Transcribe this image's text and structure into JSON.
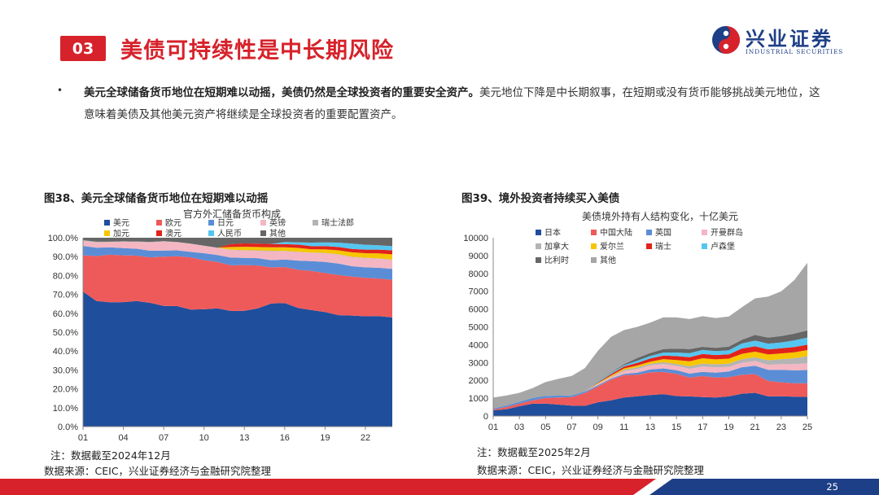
{
  "header": {
    "section_number": "03",
    "title": "美债可持续性是中长期风险",
    "logo_name": "兴业证券",
    "logo_en": "INDUSTRIAL SECURITIES"
  },
  "bullet": {
    "marker": "•",
    "bold": "美元全球储备货币地位在短期难以动摇，美债仍然是全球投资者的重要安全资产。",
    "text": "美元地位下降是中长期叙事，在短期或没有货币能够挑战美元地位，这意味着美债及其他美元资产将继续是全球投资者的重要配置资产。"
  },
  "figure38": {
    "caption": "图38、美元全球储备货币地位在短期难以动摇",
    "note": "注：数据截至2024年12月",
    "source": "数据来源：CEIC，兴业证券经济与金融研究院整理"
  },
  "figure39": {
    "caption": "图39、境外投资者持续买入美债",
    "note": "注：数据截至2025年2月",
    "source": "数据来源：CEIC，兴业证券经济与金融研究院整理"
  },
  "page_number": "25",
  "colors": {
    "red": "#d7222b",
    "navy": "#1d3f87",
    "c_usd": "#1f4e9c",
    "c_eur": "#ee5a5a",
    "c_jpy": "#5b8dd6",
    "c_gbp": "#f4b6c2",
    "c_chf": "#b4b4b4",
    "c_cad": "#f7c600",
    "c_aud": "#e2231a",
    "c_cny": "#55c6f0",
    "c_oth": "#666666",
    "c_japan": "#1f4e9c",
    "c_china": "#ee5a5a",
    "c_uk": "#5b8dd6",
    "c_cayman": "#f4b6c2",
    "c_canada": "#b4b4b4",
    "c_ireland": "#f7c600",
    "c_swiss": "#e2231a",
    "c_lux": "#55c6f0",
    "c_belgium": "#666666",
    "c_other": "#a6a6a6"
  },
  "chart_data": [
    {
      "type": "area",
      "stacked": true,
      "percent": true,
      "title": "官方外汇储备货币构成",
      "x": [
        "01",
        "02",
        "03",
        "04",
        "05",
        "06",
        "07",
        "08",
        "09",
        "10",
        "11",
        "12",
        "13",
        "14",
        "15",
        "16",
        "17",
        "18",
        "19",
        "20",
        "21",
        "22",
        "23",
        "24"
      ],
      "xticks": [
        "01",
        "04",
        "07",
        "10",
        "13",
        "16",
        "19",
        "22"
      ],
      "ylim": [
        0,
        100
      ],
      "yticks": [
        "0.0%",
        "10.0%",
        "20.0%",
        "30.0%",
        "40.0%",
        "50.0%",
        "60.0%",
        "70.0%",
        "80.0%",
        "90.0%",
        "100.0%"
      ],
      "series": [
        {
          "name": "美元",
          "color_key": "c_usd",
          "values": [
            71.5,
            66.5,
            65.8,
            65.9,
            66.5,
            65.5,
            63.9,
            63.8,
            62.0,
            62.1,
            62.6,
            61.2,
            61.3,
            62.6,
            65.2,
            65.4,
            62.8,
            61.7,
            60.7,
            59.0,
            58.8,
            58.4,
            58.5,
            57.8
          ]
        },
        {
          "name": "欧元",
          "color_key": "c_eur",
          "values": [
            19.2,
            23.8,
            25.2,
            24.8,
            24.0,
            24.1,
            26.1,
            26.4,
            27.6,
            26.0,
            24.6,
            24.2,
            24.2,
            22.7,
            19.1,
            19.1,
            20.2,
            20.7,
            20.6,
            21.3,
            20.6,
            20.4,
            19.9,
            19.9
          ]
        },
        {
          "name": "日元",
          "color_key": "c_jpy",
          "values": [
            5.0,
            4.4,
            3.9,
            3.8,
            3.7,
            3.5,
            3.2,
            3.1,
            2.9,
            3.7,
            3.6,
            4.1,
            3.8,
            3.9,
            3.8,
            4.0,
            4.9,
            5.2,
            5.9,
            6.0,
            5.5,
            5.5,
            5.7,
            5.8
          ]
        },
        {
          "name": "英镑",
          "color_key": "c_gbp",
          "values": [
            2.7,
            2.8,
            2.8,
            3.4,
            3.6,
            4.5,
            4.8,
            4.3,
            4.3,
            3.9,
            3.8,
            4.0,
            3.9,
            3.8,
            4.7,
            4.3,
            4.5,
            4.4,
            4.6,
            4.7,
            4.8,
            4.9,
            4.8,
            4.7
          ]
        },
        {
          "name": "瑞士法郎",
          "color_key": "c_chf",
          "values": [
            0.3,
            0.4,
            0.2,
            0.2,
            0.2,
            0.2,
            0.2,
            0.1,
            0.1,
            0.1,
            0.1,
            0.2,
            0.2,
            0.3,
            0.3,
            0.2,
            0.2,
            0.1,
            0.2,
            0.2,
            0.2,
            0.2,
            0.2,
            0.2
          ]
        },
        {
          "name": "加元",
          "color_key": "c_cad",
          "values": [
            0,
            0,
            0,
            0,
            0,
            0,
            0,
            0,
            0,
            0,
            0,
            1.4,
            1.8,
            1.8,
            1.8,
            1.9,
            2.0,
            1.8,
            1.9,
            2.1,
            2.4,
            2.4,
            2.6,
            2.8
          ]
        },
        {
          "name": "澳元",
          "color_key": "c_aud",
          "values": [
            0,
            0,
            0,
            0,
            0,
            0,
            0,
            0,
            0,
            0,
            0,
            1.5,
            1.8,
            1.8,
            1.8,
            1.7,
            1.8,
            1.6,
            1.7,
            1.8,
            1.8,
            1.9,
            2.0,
            2.1
          ]
        },
        {
          "name": "人民币",
          "color_key": "c_cny",
          "values": [
            0,
            0,
            0,
            0,
            0,
            0,
            0,
            0,
            0,
            0,
            0,
            0,
            0,
            0,
            0,
            1.1,
            1.2,
            1.9,
            1.9,
            2.3,
            2.8,
            2.6,
            2.3,
            2.2
          ]
        },
        {
          "name": "其他",
          "color_key": "c_oth",
          "values": [
            1.3,
            2.1,
            2.1,
            1.9,
            2.0,
            2.2,
            1.8,
            2.3,
            3.1,
            4.2,
            5.3,
            3.4,
            2.8,
            3.1,
            3.3,
            2.3,
            2.4,
            2.6,
            2.5,
            2.6,
            3.1,
            3.7,
            4.0,
            4.5
          ]
        }
      ],
      "legend": [
        "美元",
        "欧元",
        "日元",
        "英镑",
        "瑞士法郎",
        "加元",
        "澳元",
        "人民币",
        "其他"
      ]
    },
    {
      "type": "area",
      "stacked": true,
      "title": "美债境外持有人结构变化，十亿美元",
      "x": [
        "01",
        "02",
        "03",
        "04",
        "05",
        "06",
        "07",
        "08",
        "09",
        "10",
        "11",
        "12",
        "13",
        "14",
        "15",
        "16",
        "17",
        "18",
        "19",
        "20",
        "21",
        "22",
        "23",
        "24",
        "25"
      ],
      "xticks": [
        "01",
        "03",
        "05",
        "07",
        "09",
        "11",
        "13",
        "15",
        "17",
        "19",
        "21",
        "23",
        "25"
      ],
      "ylim": [
        0,
        10000
      ],
      "yticks": [
        "0",
        "1000",
        "2000",
        "3000",
        "4000",
        "5000",
        "6000",
        "7000",
        "8000",
        "9000",
        "10000"
      ],
      "series": [
        {
          "name": "日本",
          "color_key": "c_japan",
          "values": [
            320,
            380,
            550,
            690,
            700,
            640,
            580,
            570,
            770,
            880,
            1040,
            1110,
            1180,
            1230,
            1120,
            1100,
            1060,
            1040,
            1100,
            1250,
            1300,
            1100,
            1110,
            1080,
            1070
          ]
        },
        {
          "name": "中国大陆",
          "color_key": "c_china",
          "values": [
            60,
            120,
            150,
            190,
            310,
            400,
            480,
            720,
            890,
            1160,
            1250,
            1200,
            1270,
            1240,
            1250,
            1060,
            1180,
            1120,
            1080,
            1070,
            1050,
            870,
            780,
            760,
            770
          ]
        },
        {
          "name": "英国",
          "color_key": "c_uk",
          "values": [
            50,
            80,
            100,
            130,
            120,
            100,
            90,
            80,
            70,
            60,
            70,
            120,
            160,
            200,
            200,
            220,
            240,
            270,
            320,
            420,
            470,
            620,
            700,
            720,
            740
          ]
        },
        {
          "name": "开曼群岛",
          "color_key": "c_cayman",
          "values": [
            0,
            0,
            0,
            0,
            0,
            0,
            0,
            0,
            60,
            70,
            160,
            210,
            230,
            250,
            250,
            270,
            300,
            300,
            260,
            250,
            260,
            280,
            320,
            350,
            380
          ]
        },
        {
          "name": "加拿大",
          "color_key": "c_canada",
          "values": [
            0,
            0,
            0,
            0,
            0,
            0,
            0,
            0,
            20,
            40,
            70,
            90,
            90,
            100,
            100,
            140,
            160,
            170,
            180,
            200,
            220,
            260,
            280,
            330,
            400
          ]
        },
        {
          "name": "爱尔兰",
          "color_key": "c_ireland",
          "values": [
            0,
            0,
            0,
            0,
            0,
            0,
            0,
            0,
            40,
            60,
            80,
            100,
            120,
            170,
            220,
            280,
            300,
            280,
            280,
            300,
            310,
            320,
            320,
            330,
            340
          ]
        },
        {
          "name": "瑞士",
          "color_key": "c_swiss",
          "values": [
            0,
            0,
            0,
            0,
            0,
            0,
            0,
            0,
            40,
            80,
            110,
            150,
            180,
            200,
            220,
            230,
            240,
            240,
            240,
            300,
            300,
            290,
            290,
            300,
            300
          ]
        },
        {
          "name": "卢森堡",
          "color_key": "c_lux",
          "values": [
            0,
            0,
            0,
            0,
            0,
            0,
            0,
            0,
            50,
            60,
            70,
            120,
            140,
            170,
            200,
            220,
            230,
            220,
            230,
            280,
            320,
            320,
            330,
            370,
            400
          ]
        },
        {
          "name": "比利时",
          "color_key": "c_belgium",
          "values": [
            0,
            0,
            0,
            0,
            0,
            0,
            0,
            0,
            20,
            30,
            60,
            150,
            170,
            200,
            220,
            240,
            170,
            180,
            200,
            210,
            320,
            340,
            360,
            380,
            400
          ]
        },
        {
          "name": "其他",
          "color_key": "c_other",
          "values": [
            600,
            570,
            500,
            550,
            780,
            950,
            1100,
            1320,
            1700,
            2000,
            1910,
            1750,
            1700,
            1780,
            1750,
            1680,
            1720,
            1680,
            1690,
            1820,
            2050,
            2300,
            2500,
            3000,
            3800
          ]
        }
      ],
      "legend": [
        "日本",
        "中国大陆",
        "英国",
        "开曼群岛",
        "加拿大",
        "爱尔兰",
        "瑞士",
        "卢森堡",
        "比利时",
        "其他"
      ]
    }
  ]
}
